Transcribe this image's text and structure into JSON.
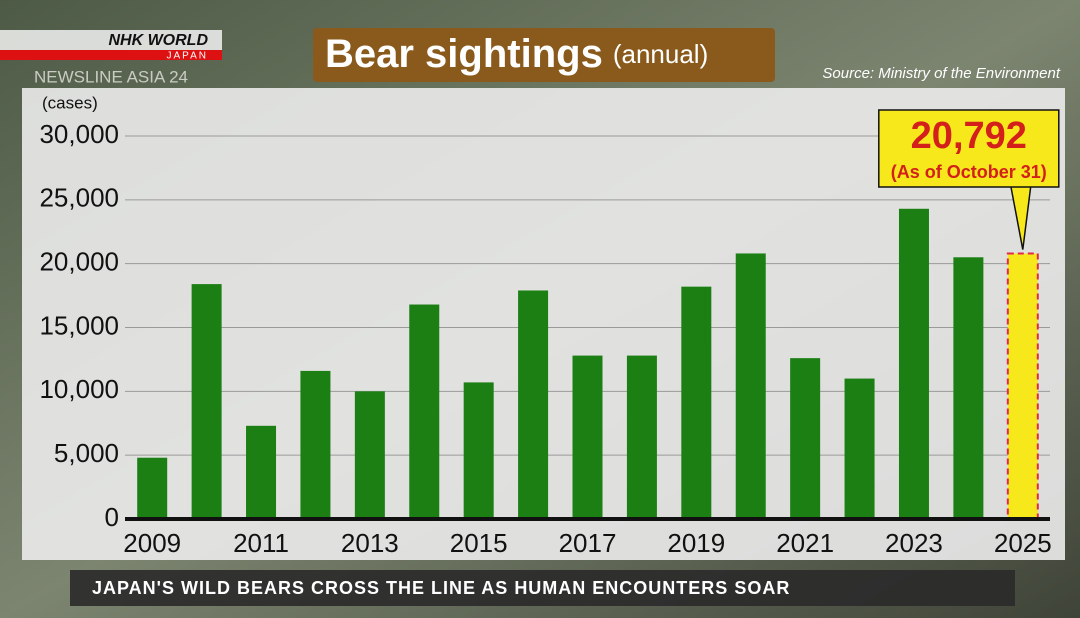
{
  "branding": {
    "network": "NHK WORLD",
    "region": "JAPAN",
    "program": "NEWSLINE ASIA 24"
  },
  "headline": "JAPAN'S WILD BEARS CROSS THE LINE AS HUMAN ENCOUNTERS SOAR",
  "chart_data": {
    "type": "bar",
    "title": "Bear sightings",
    "subtitle": "(annual)",
    "source": "Source: Ministry of the Environment",
    "y_label": "(cases)",
    "categories": [
      "2009",
      null,
      "2011",
      null,
      "2013",
      null,
      "2015",
      null,
      "2017",
      null,
      "2019",
      null,
      "2021",
      null,
      "2023",
      null,
      "2025"
    ],
    "values": [
      4800,
      18400,
      7300,
      11600,
      10000,
      16800,
      10700,
      17900,
      12800,
      12800,
      18200,
      20800,
      12600,
      11000,
      24300,
      20500,
      20792
    ],
    "value_labels": [
      null,
      null,
      null,
      null,
      null,
      null,
      null,
      null,
      null,
      null,
      null,
      null,
      null,
      null,
      null,
      null,
      "20,792"
    ],
    "annotation": "(As of October 31)",
    "colors": [
      "#1b7f14",
      "#1b7f14",
      "#1b7f14",
      "#1b7f14",
      "#1b7f14",
      "#1b7f14",
      "#1b7f14",
      "#1b7f14",
      "#1b7f14",
      "#1b7f14",
      "#1b7f14",
      "#1b7f14",
      "#1b7f14",
      "#1b7f14",
      "#1b7f14",
      "#1b7f14",
      "#f7e81c"
    ],
    "ylim": [
      0,
      30000
    ],
    "yticks": [
      0,
      {
        "value": 5000,
        "label": "5,000"
      },
      {
        "value": 10000,
        "label": "10,000"
      },
      {
        "value": 15000,
        "label": "15,000"
      },
      {
        "value": 20000,
        "label": "20,000"
      },
      {
        "value": 25000,
        "label": "25,000"
      },
      {
        "value": 30000,
        "label": "30,000"
      }
    ],
    "grid": true
  }
}
